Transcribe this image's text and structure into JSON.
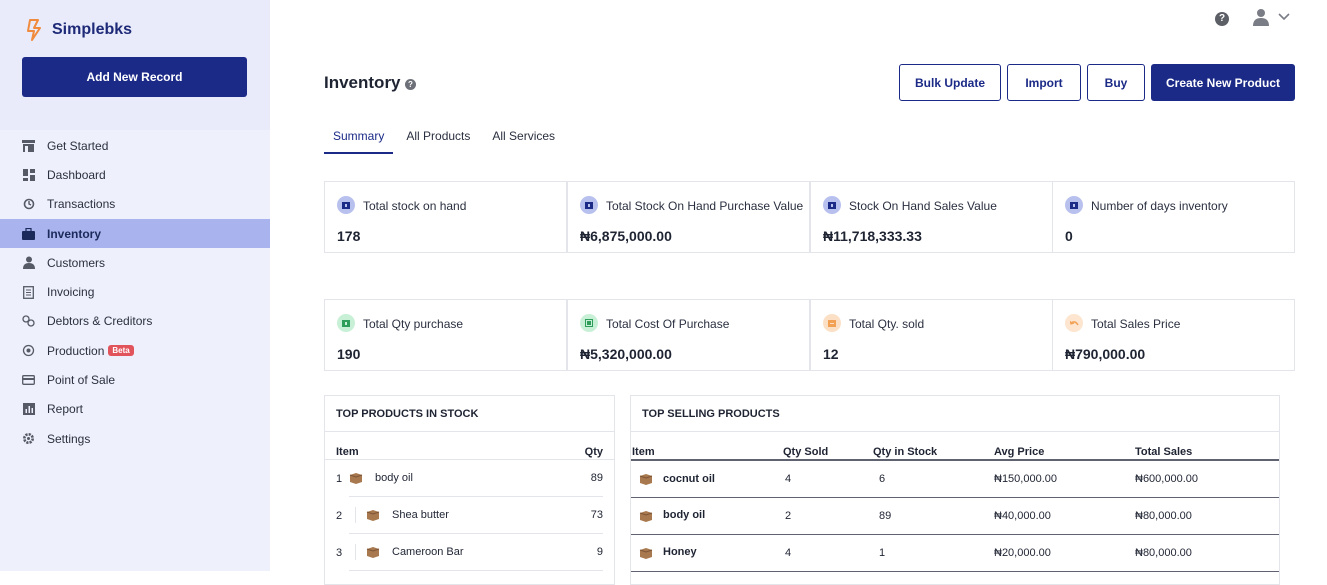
{
  "app": {
    "name": "Simplebks"
  },
  "sidebar": {
    "add_button": "Add New Record",
    "items": [
      {
        "label": "Get Started",
        "icon": "store-icon"
      },
      {
        "label": "Dashboard",
        "icon": "dashboard-icon"
      },
      {
        "label": "Transactions",
        "icon": "transactions-icon"
      },
      {
        "label": "Inventory",
        "icon": "briefcase-icon",
        "active": true
      },
      {
        "label": "Customers",
        "icon": "person-icon"
      },
      {
        "label": "Invoicing",
        "icon": "invoice-icon"
      },
      {
        "label": "Debtors & Creditors",
        "icon": "debtors-icon"
      },
      {
        "label": "Production",
        "icon": "production-icon",
        "badge": "Beta"
      },
      {
        "label": "Point of Sale",
        "icon": "card-icon"
      },
      {
        "label": "Report",
        "icon": "report-icon"
      },
      {
        "label": "Settings",
        "icon": "gear-icon"
      }
    ]
  },
  "topbar": {
    "help": "?"
  },
  "header": {
    "title": "Inventory",
    "buttons": {
      "bulk_update": "Bulk Update",
      "import": "Import",
      "buy": "Buy",
      "create": "Create New Product"
    }
  },
  "tabs": [
    "Summary",
    "All Products",
    "All Services"
  ],
  "stats_row1": [
    {
      "label": "Total stock on hand",
      "value": "178"
    },
    {
      "label": "Total Stock On Hand Purchase Value",
      "value": "₦6,875,000.00"
    },
    {
      "label": "Stock On Hand Sales Value",
      "value": "₦11,718,333.33"
    },
    {
      "label": "Number of days inventory",
      "value": "0"
    }
  ],
  "stats_row2": [
    {
      "label": "Total Qty purchase",
      "value": "190"
    },
    {
      "label": "Total Cost Of Purchase",
      "value": "₦5,320,000.00"
    },
    {
      "label": "Total Qty. sold",
      "value": "12"
    },
    {
      "label": "Total Sales Price",
      "value": "₦790,000.00"
    }
  ],
  "top_stock": {
    "title": "TOP PRODUCTS IN STOCK",
    "col_item": "Item",
    "col_qty": "Qty",
    "rows": [
      {
        "idx": "1",
        "name": "body oil",
        "qty": "89"
      },
      {
        "idx": "2",
        "name": "Shea butter",
        "qty": "73"
      },
      {
        "idx": "3",
        "name": "Cameroon Bar",
        "qty": "9"
      }
    ]
  },
  "top_selling": {
    "title": "TOP SELLING PRODUCTS",
    "columns": [
      "Item",
      "Qty Sold",
      "Qty in Stock",
      "Avg Price",
      "Total Sales"
    ],
    "rows": [
      {
        "name": "cocnut oil",
        "sold": "4",
        "stock": "6",
        "avg": "₦150,000.00",
        "total": "₦600,000.00"
      },
      {
        "name": "body oil",
        "sold": "2",
        "stock": "89",
        "avg": "₦40,000.00",
        "total": "₦80,000.00"
      },
      {
        "name": "Honey",
        "sold": "4",
        "stock": "1",
        "avg": "₦20,000.00",
        "total": "₦80,000.00"
      }
    ]
  },
  "colors": {
    "primary": "#1b2a87",
    "sidebar": "#eef0fb",
    "active": "#a9b4ef",
    "beta": "#e2545c"
  }
}
